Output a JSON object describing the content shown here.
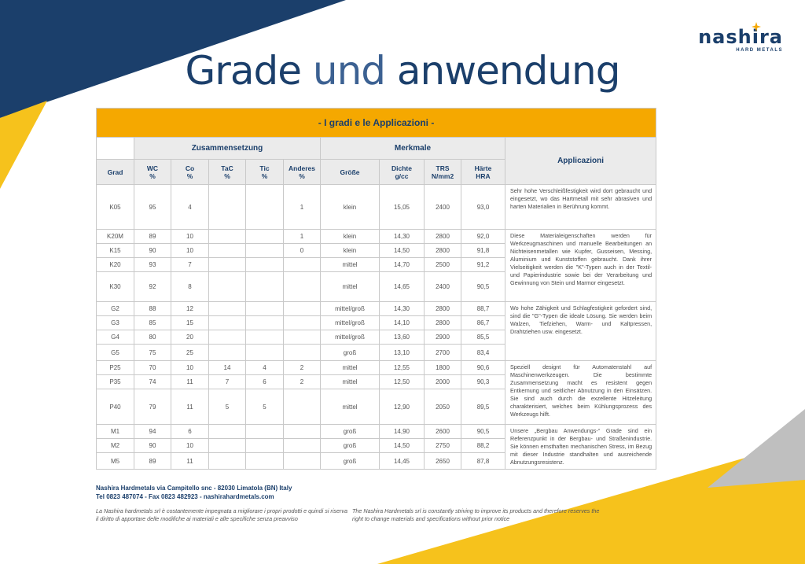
{
  "brand": {
    "name": "nashira",
    "tagline": "HARD METALS"
  },
  "title": {
    "part1": "Grade",
    "part2": "und",
    "part3": "anwendung"
  },
  "colors": {
    "navy": "#1b3f6b",
    "orange": "#f5a800",
    "yellow": "#f6c21c",
    "grey": "#bfbfbf"
  },
  "table": {
    "banner": "- I gradi e le Applicazioni -",
    "groups": {
      "composition": "Zusammensetzung",
      "features": "Merkmale",
      "applications": "Applicazioni"
    },
    "headers": {
      "grade": "Grad",
      "wc": "WC",
      "wc_unit": "%",
      "co": "Co",
      "co_unit": "%",
      "tac": "TaC",
      "tac_unit": "%",
      "tic": "Tic",
      "tic_unit": "%",
      "other": "Anderes",
      "other_unit": "%",
      "size": "Größe",
      "density": "Dichte",
      "density_unit": "g/cc",
      "trs": "TRS",
      "trs_unit": "N/mm2",
      "hardness": "Härte",
      "hardness_unit": "HRA"
    },
    "rows": [
      {
        "grade": "K05",
        "wc": "95",
        "co": "4",
        "tac": "",
        "tic": "",
        "other": "1",
        "size": "klein",
        "density": "15,05",
        "trs": "2400",
        "hra": "93,0"
      },
      {
        "grade": "K20M",
        "wc": "89",
        "co": "10",
        "tac": "",
        "tic": "",
        "other": "1",
        "size": "klein",
        "density": "14,30",
        "trs": "2800",
        "hra": "92,0"
      },
      {
        "grade": "K15",
        "wc": "90",
        "co": "10",
        "tac": "",
        "tic": "",
        "other": "0",
        "size": "klein",
        "density": "14,50",
        "trs": "2800",
        "hra": "91,8"
      },
      {
        "grade": "K20",
        "wc": "93",
        "co": "7",
        "tac": "",
        "tic": "",
        "other": "",
        "size": "mittel",
        "density": "14,70",
        "trs": "2500",
        "hra": "91,2"
      },
      {
        "grade": "K30",
        "wc": "92",
        "co": "8",
        "tac": "",
        "tic": "",
        "other": "",
        "size": "mittel",
        "density": "14,65",
        "trs": "2400",
        "hra": "90,5"
      },
      {
        "grade": "G2",
        "wc": "88",
        "co": "12",
        "tac": "",
        "tic": "",
        "other": "",
        "size": "mittel/groß",
        "density": "14,30",
        "trs": "2800",
        "hra": "88,7"
      },
      {
        "grade": "G3",
        "wc": "85",
        "co": "15",
        "tac": "",
        "tic": "",
        "other": "",
        "size": "mittel/groß",
        "density": "14,10",
        "trs": "2800",
        "hra": "86,7"
      },
      {
        "grade": "G4",
        "wc": "80",
        "co": "20",
        "tac": "",
        "tic": "",
        "other": "",
        "size": "mittel/groß",
        "density": "13,60",
        "trs": "2900",
        "hra": "85,5"
      },
      {
        "grade": "G5",
        "wc": "75",
        "co": "25",
        "tac": "",
        "tic": "",
        "other": "",
        "size": "groß",
        "density": "13,10",
        "trs": "2700",
        "hra": "83,4"
      },
      {
        "grade": "P25",
        "wc": "70",
        "co": "10",
        "tac": "14",
        "tic": "4",
        "other": "2",
        "size": "mittel",
        "density": "12,55",
        "trs": "1800",
        "hra": "90,6"
      },
      {
        "grade": "P35",
        "wc": "74",
        "co": "11",
        "tac": "7",
        "tic": "6",
        "other": "2",
        "size": "mittel",
        "density": "12,50",
        "trs": "2000",
        "hra": "90,3"
      },
      {
        "grade": "P40",
        "wc": "79",
        "co": "11",
        "tac": "5",
        "tic": "5",
        "other": "",
        "size": "mittel",
        "density": "12,90",
        "trs": "2050",
        "hra": "89,5"
      },
      {
        "grade": "M1",
        "wc": "94",
        "co": "6",
        "tac": "",
        "tic": "",
        "other": "",
        "size": "groß",
        "density": "14,90",
        "trs": "2600",
        "hra": "90,5"
      },
      {
        "grade": "M2",
        "wc": "90",
        "co": "10",
        "tac": "",
        "tic": "",
        "other": "",
        "size": "groß",
        "density": "14,50",
        "trs": "2750",
        "hra": "88,2"
      },
      {
        "grade": "M5",
        "wc": "89",
        "co": "11",
        "tac": "",
        "tic": "",
        "other": "",
        "size": "groß",
        "density": "14,45",
        "trs": "2650",
        "hra": "87,8"
      }
    ],
    "applications": [
      "Sehr hohe Verschleißfestigkeit wird dort gebraucht und eingesetzt, wo das Hartmetall mit sehr abrasiven und harten Materialien in Berührung kommt.",
      "Diese Materialeigenschaften werden für Werkzeugmaschinen und manuelle Bearbeitungen an Nichteisenmetallen wie Kupfer, Gusseisen, Messing, Aluminium und Kunststoffen gebraucht. Dank ihrer Vielseitigkeit werden die \"K\"-Typen auch in der Textil- und Papierindustrie sowie bei der Verarbeitung und Gewinnung von Stein und Marmor eingesetzt.",
      "Wo hohe Zähigkeit und Schlagfestigkeit gefordert sind, sind die \"G\"-Typen die ideale Lösung. Sie werden beim Walzen, Tiefziehen, Warm- und Kaltpressen, Drahtziehen usw. eingesetzt.",
      "Speziell designt für Automatenstahl auf Maschinenwerkzeugen. Die bestimmte Zusammensetzung macht es resistent gegen Entkernung und seitlicher Abnutzung in den Einsätzen. Sie sind auch durch die exzellente Hitzeleitung charakterisiert, welches beim Kühlungsprozess des Werkzeugs hilft.",
      "Unsere „Bergbau Anwendungs-“ Grade sind ein Referenzpunkt in der Bergbau- und Straßenindustrie. Sie können ernsthaften mechanischen Stress, im Bezug mit dieser Industrie standhalten und ausreichende Abnutzungsresistenz."
    ]
  },
  "footer": {
    "address": "Nashira Hardmetals via Campitello snc - 82030 Limatola (BN) Italy",
    "contact": "Tel 0823 487074 - Fax 0823 482923 - nashirahardmetals.com",
    "note_it": "La Nashira hardmetals srl è costantemente impegnata a migliorare i propri prodotti e quindi si riserva il diritto di apportare delle modifiche ai materiali e alle specifiche senza preavviso",
    "note_en": "The Nashira Hardmetals srl is constantly striving to improve its products and therefore reserves the right to change materials and specifications without prior notice"
  }
}
